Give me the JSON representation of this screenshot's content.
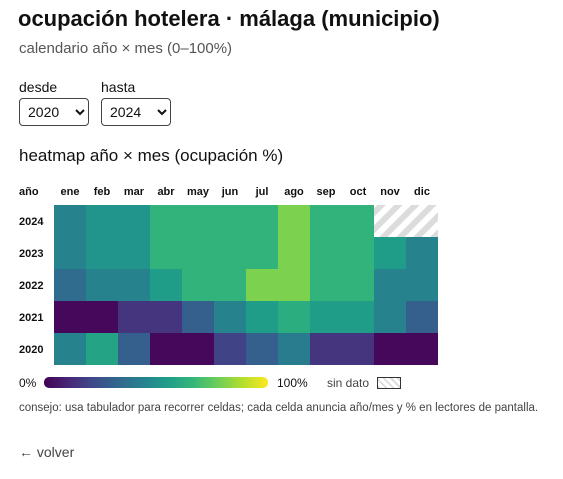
{
  "page": {
    "title": "ocupación hotelera · málaga (municipio)",
    "subtitle": "calendario año × mes (0–100%)"
  },
  "filters": {
    "from_label": "desde",
    "from_value": "2020",
    "to_label": "hasta",
    "to_value": "2024"
  },
  "section_title": "heatmap año × mes (ocupación %)",
  "chart_data": {
    "type": "heatmap",
    "row_header": "año",
    "columns": [
      "ene",
      "feb",
      "mar",
      "abr",
      "may",
      "jun",
      "jul",
      "ago",
      "sep",
      "oct",
      "nov",
      "dic"
    ],
    "rows": [
      "2024",
      "2023",
      "2022",
      "2021",
      "2020"
    ],
    "values": [
      [
        45,
        52,
        52,
        65,
        65,
        65,
        65,
        80,
        65,
        65,
        null,
        null
      ],
      [
        45,
        52,
        52,
        65,
        65,
        65,
        65,
        80,
        65,
        65,
        55,
        45
      ],
      [
        35,
        45,
        45,
        55,
        65,
        65,
        80,
        80,
        65,
        65,
        45,
        45
      ],
      [
        2,
        2,
        15,
        15,
        30,
        45,
        55,
        62,
        55,
        55,
        45,
        30
      ],
      [
        45,
        58,
        30,
        2,
        2,
        20,
        30,
        42,
        15,
        15,
        2,
        2
      ]
    ],
    "range": [
      0,
      100
    ],
    "colorscale": "viridis",
    "legend_min": "0%",
    "legend_max": "100%",
    "no_data_label": "sin dato"
  },
  "hint": "consejo: usa tabulador para recorrer celdas; cada celda anuncia año/mes y % en lectores de pantalla.",
  "back_link": "← volver"
}
